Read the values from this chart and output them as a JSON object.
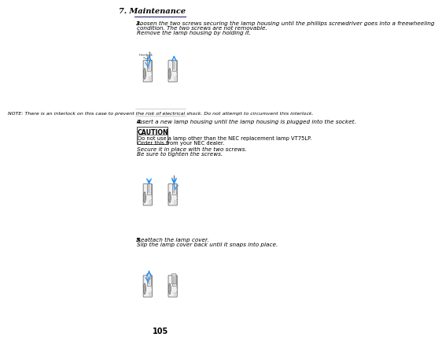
{
  "page_num": "105",
  "header_section": "7. Maintenance",
  "header_line_color": "#4a4a8a",
  "bg_color": "#ffffff",
  "text_color": "#000000",
  "step3_label": "3.",
  "step3_text_line1": "Loosen the two screws securing the lamp housing until the phillips screwdriver goes into a freewheeling",
  "step3_text_line2": "condition. The two screws are not removable.",
  "step3_italic": "Remove the lamp housing by holding it.",
  "note_text": "NOTE: There is an interlock on this case to prevent the risk of electrical shock. Do not attempt to circumvent this interlock.",
  "step4_label": "4.",
  "step4_text": "Insert a new lamp housing until the lamp housing is plugged into the socket.",
  "caution_title": "CAUTION",
  "caution_line1": "Do not use a lamp other than the NEC replacement lamp VT75LP.",
  "caution_line2": "Order this from your NEC dealer.",
  "step4_italic1": "Secure it in place with the two screws.",
  "step4_italic2": "Be sure to tighten the screws.",
  "step5_label": "5.",
  "step5_italic1": "Reattach the lamp cover.",
  "step5_italic2": "Slip the lamp cover back until it snaps into place.",
  "interlock_label": "Interlock",
  "font_size_header": 7,
  "font_size_body": 5.2,
  "font_size_note": 4.5,
  "font_size_page": 7,
  "arrow_color": "#1e90ff"
}
